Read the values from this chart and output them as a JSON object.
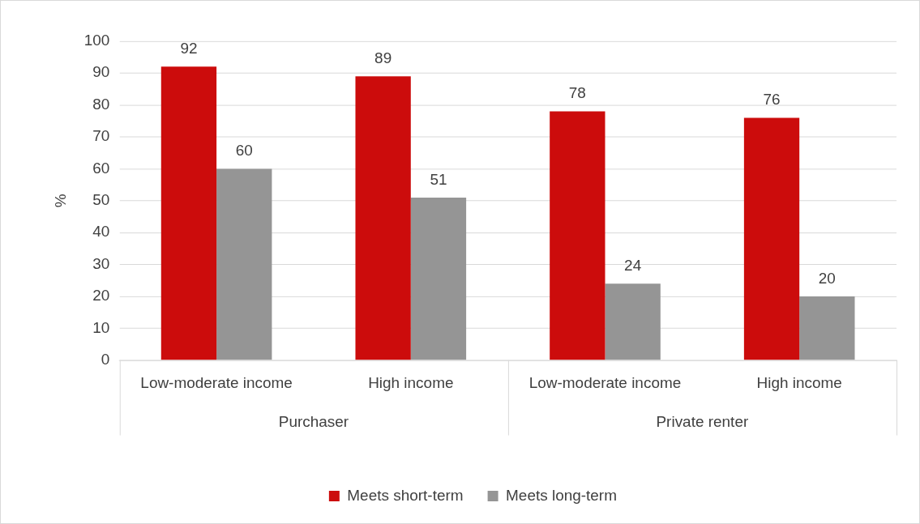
{
  "chart_data": {
    "type": "bar",
    "ylabel": "%",
    "categories": [
      "Low-moderate income",
      "High income",
      "Low-moderate income",
      "High income"
    ],
    "annotations": [
      "Purchaser",
      "Private renter"
    ],
    "series": [
      {
        "name": "Meets short-term",
        "color": "#cc0c0c",
        "values": [
          92,
          89,
          78,
          76
        ]
      },
      {
        "name": "Meets long-term",
        "color": "#959595",
        "values": [
          60,
          51,
          24,
          20
        ]
      }
    ],
    "ylim": [
      0,
      100
    ],
    "yticks": [
      0,
      10,
      20,
      30,
      40,
      50,
      60,
      70,
      80,
      90,
      100
    ],
    "grid": "y",
    "legend": "bottom",
    "data_labels": true
  }
}
